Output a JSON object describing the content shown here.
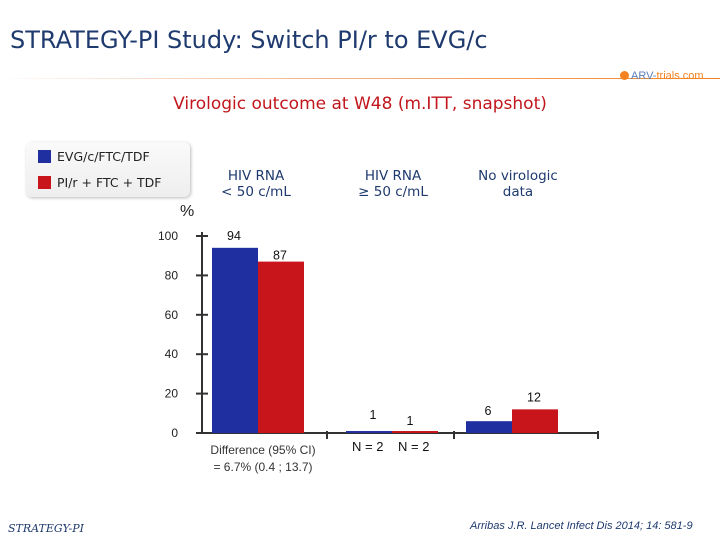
{
  "slide": {
    "title": "STRATEGY-PI Study: Switch PI/r to EVG/c",
    "logo_prefix": "ARV-",
    "logo_suffix": "trials.com",
    "footer_left": "STRATEGY-PI",
    "footer_right": "Arribas J.R. Lancet Infect Dis 2014; 14: 581-9",
    "percent_symbol": "%",
    "difference_note_line1": "Difference (95% CI)",
    "difference_note_line2": "= 6.7% (0.4 ; 13.7)",
    "n_label_1": "N = 2",
    "n_label_2": "N = 2"
  },
  "chart_data": {
    "type": "bar",
    "title": "Virologic outcome at W48 (m.ITT, snapshot)",
    "ylabel": "%",
    "ylim": [
      0,
      100
    ],
    "yticks": [
      0,
      20,
      40,
      60,
      80,
      100
    ],
    "categories": [
      {
        "line1": "HIV RNA",
        "line2": "< 50 c/mL"
      },
      {
        "line1": "HIV RNA",
        "line2": "≥ 50 c/mL"
      },
      {
        "line1": "No virologic",
        "line2": "data"
      }
    ],
    "series": [
      {
        "name": "EVG/c/FTC/TDF",
        "color": "#1f2fa0",
        "values": [
          94,
          1,
          6
        ]
      },
      {
        "name": "PI/r + FTC + TDF",
        "color": "#c8141b",
        "values": [
          87,
          1,
          12
        ]
      }
    ]
  }
}
